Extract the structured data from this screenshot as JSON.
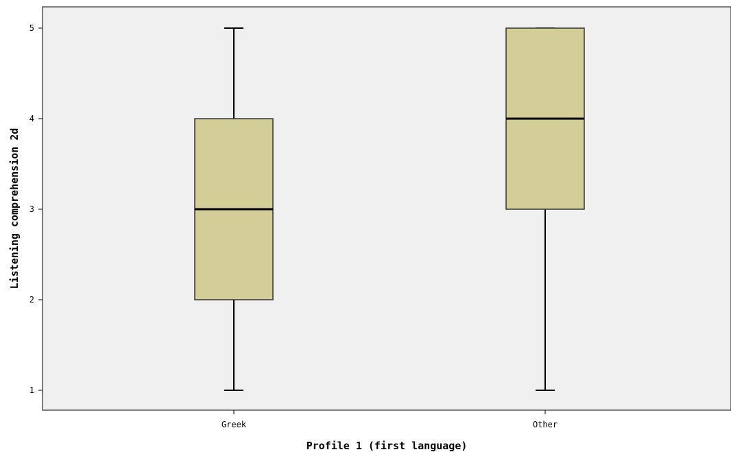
{
  "chart_data": {
    "type": "boxplot",
    "title": "",
    "xlabel": "Profile 1 (first language)",
    "ylabel": "Listening comprehension 2d",
    "categories": [
      "Greek",
      "Other"
    ],
    "boxes": [
      {
        "category": "Greek",
        "min": 1,
        "q1": 2,
        "median": 3,
        "q3": 4,
        "max": 5
      },
      {
        "category": "Other",
        "min": 1,
        "q1": 3,
        "median": 4,
        "q3": 5,
        "max": 5
      }
    ],
    "y_ticks": [
      1,
      2,
      3,
      4,
      5
    ],
    "ylim": [
      0.78,
      5.23
    ],
    "grid": false,
    "colors": {
      "plot_background": "#f0f0f0",
      "box_fill": "#d3ce97",
      "line": "#000000"
    }
  }
}
